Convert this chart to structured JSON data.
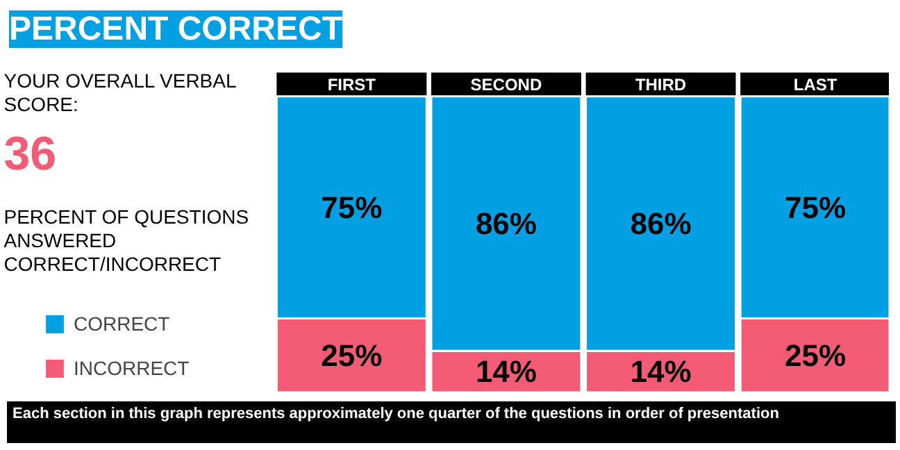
{
  "chart_data": {
    "type": "bar",
    "title": "PERCENT CORRECT",
    "categories": [
      "FIRST",
      "SECOND",
      "THIRD",
      "LAST"
    ],
    "stacked": true,
    "series": [
      {
        "name": "INCORRECT",
        "color": "#f45b75",
        "values": [
          25,
          14,
          14,
          25
        ],
        "value_labels": [
          "25%",
          "14%",
          "14%",
          "25%"
        ]
      },
      {
        "name": "CORRECT",
        "color": "#00a0e2",
        "values": [
          75,
          86,
          86,
          75
        ],
        "value_labels": [
          "75%",
          "86%",
          "86%",
          "75%"
        ]
      }
    ],
    "legend": "left",
    "grid": false,
    "annotations": [
      "YOUR OVERALL VERBAL\nSCORE:",
      "36",
      "PERCENT OF QUESTIONS\nANSWERED\nCORRECT/INCORRECT",
      "Each section in this graph represents approximately one quarter of the questions in order of presentation"
    ]
  }
}
